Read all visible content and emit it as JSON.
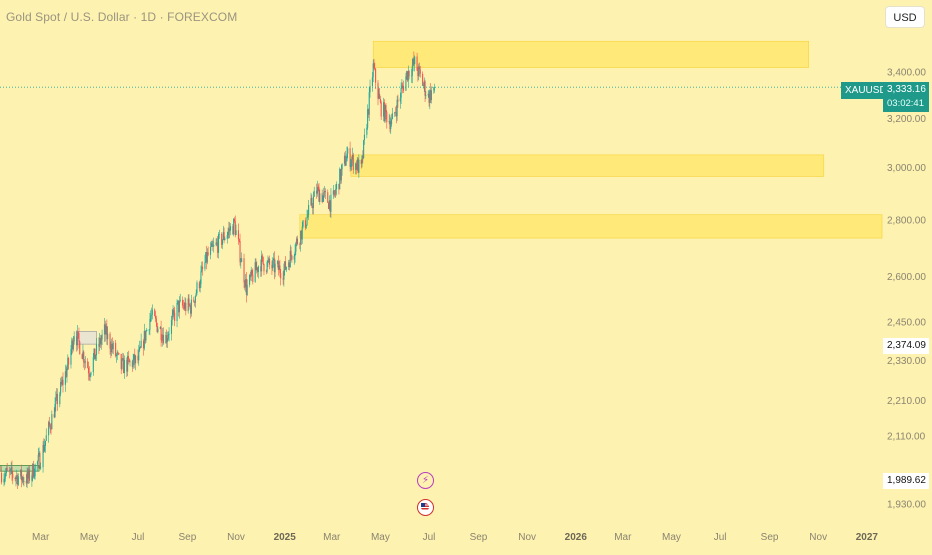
{
  "header": {
    "title": "Gold Spot / U.S. Dollar · 1D · FOREXCOM",
    "currency": "USD"
  },
  "badges": {
    "symbol": "XAUUSD",
    "last_price": "3,333.16",
    "countdown": "03:02:41",
    "level_2374": "2,374.09",
    "level_1989": "1,989.62"
  },
  "colors": {
    "background": "#fdf2b0",
    "zone_fill": "#ffe566",
    "up": "#26a69a",
    "down": "#ef5350",
    "badge": "#1f9a8a"
  },
  "icons": [
    "lightning-icon",
    "us-flag-icon"
  ],
  "chart_data": {
    "type": "candlestick",
    "symbol": "XAUUSD",
    "timeframe": "1D",
    "y_axis": {
      "scale": "log",
      "ticks": [
        3400,
        3200,
        3000,
        2800,
        2600,
        2450,
        2330,
        2210,
        2110,
        1930
      ],
      "tick_labels": [
        "3,400.00",
        "3,200.00",
        "3,000.00",
        "2,800.00",
        "2,600.00",
        "2,450.00",
        "2,330.00",
        "2,210.00",
        "2,110.00",
        "1,930.00"
      ],
      "range": [
        1890,
        3640
      ]
    },
    "x_axis": {
      "ticks": [
        "2024-03-01",
        "2024-05-01",
        "2024-07-01",
        "2024-09-01",
        "2024-11-01",
        "2025-01-01",
        "2025-03-01",
        "2025-05-01",
        "2025-07-01",
        "2025-09-01",
        "2025-11-01",
        "2026-01-01",
        "2026-03-01",
        "2026-05-01",
        "2026-07-01",
        "2026-09-01",
        "2026-11-01",
        "2027-01-01"
      ],
      "tick_labels": [
        "Mar",
        "May",
        "Jul",
        "Sep",
        "Nov",
        "2025",
        "Mar",
        "May",
        "Jul",
        "Sep",
        "Nov",
        "2026",
        "Mar",
        "May",
        "Jul",
        "Sep",
        "Nov",
        "2027"
      ],
      "range": [
        "2024-01-10",
        "2027-01-20"
      ]
    },
    "price_path": [
      [
        "2024-01-12",
        2010
      ],
      [
        "2024-02-14",
        1995
      ],
      [
        "2024-03-01",
        2050
      ],
      [
        "2024-03-15",
        2160
      ],
      [
        "2024-04-05",
        2320
      ],
      [
        "2024-04-12",
        2420
      ],
      [
        "2024-05-01",
        2300
      ],
      [
        "2024-05-20",
        2420
      ],
      [
        "2024-06-10",
        2310
      ],
      [
        "2024-07-01",
        2330
      ],
      [
        "2024-07-17",
        2470
      ],
      [
        "2024-08-05",
        2400
      ],
      [
        "2024-08-20",
        2500
      ],
      [
        "2024-09-06",
        2500
      ],
      [
        "2024-09-26",
        2670
      ],
      [
        "2024-10-30",
        2785
      ],
      [
        "2024-11-14",
        2560
      ],
      [
        "2024-12-01",
        2650
      ],
      [
        "2024-12-31",
        2620
      ],
      [
        "2025-01-24",
        2770
      ],
      [
        "2025-02-10",
        2910
      ],
      [
        "2025-03-01",
        2860
      ],
      [
        "2025-03-20",
        3050
      ],
      [
        "2025-04-07",
        2990
      ],
      [
        "2025-04-22",
        3420
      ],
      [
        "2025-05-01",
        3250
      ],
      [
        "2025-05-15",
        3180
      ],
      [
        "2025-06-03",
        3390
      ],
      [
        "2025-06-13",
        3440
      ],
      [
        "2025-06-30",
        3290
      ],
      [
        "2025-07-08",
        3333.16
      ]
    ],
    "last_price": 3333.16,
    "price_line_color": "#26a69a",
    "zones": [
      {
        "name": "supply-zone",
        "from": "2025-04-22",
        "to": "2026-10-20",
        "low": 3420,
        "high": 3540
      },
      {
        "name": "mid-zone",
        "from": "2025-03-25",
        "to": "2026-11-08",
        "low": 2965,
        "high": 3050
      },
      {
        "name": "lower-zone",
        "from": "2025-01-20",
        "to": "2027-01-20",
        "low": 2735,
        "high": 2820
      }
    ],
    "small_boxes": [
      {
        "from": "2024-01-10",
        "to": "2024-02-28",
        "low": 2015,
        "high": 2030
      },
      {
        "from": "2024-04-15",
        "to": "2024-05-10",
        "low": 2380,
        "high": 2420
      }
    ],
    "price_labels": [
      {
        "value": 2374.09
      },
      {
        "value": 1989.62
      }
    ]
  }
}
